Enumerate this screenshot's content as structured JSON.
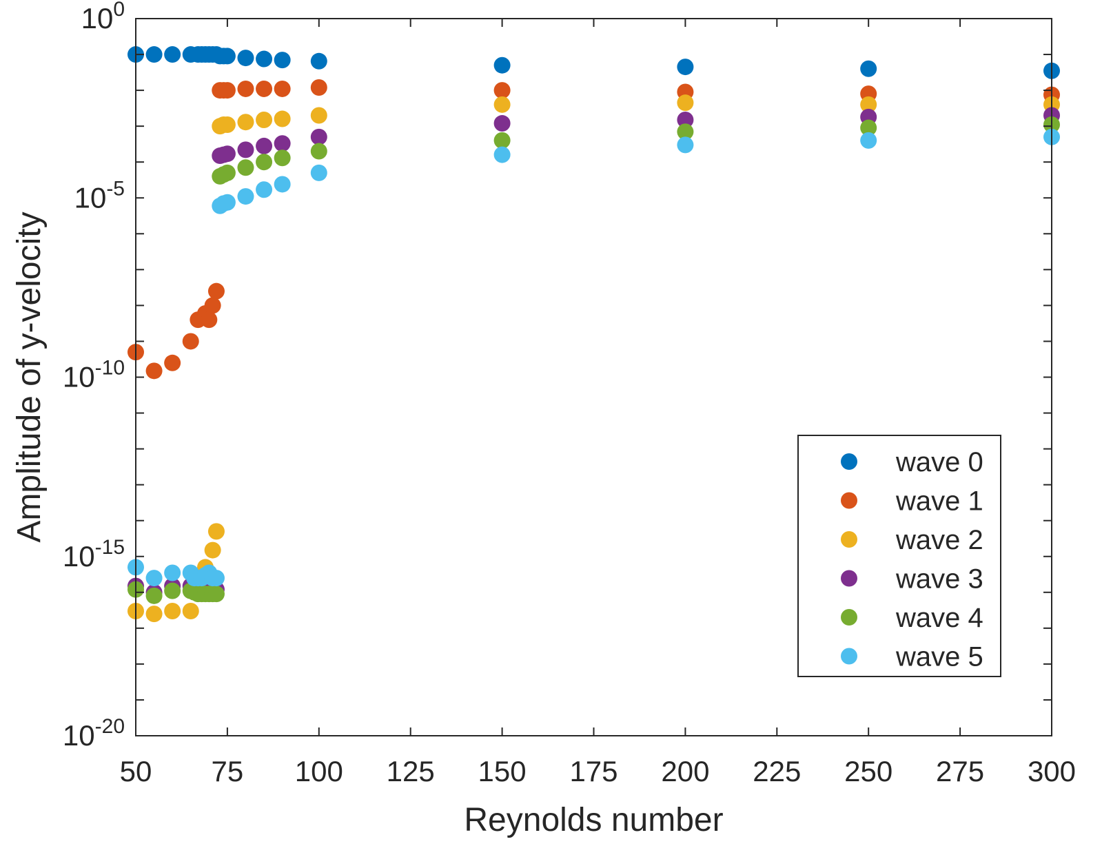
{
  "chart_data": {
    "type": "scatter",
    "xlabel": "Reynolds number",
    "ylabel": "Amplitude of y-velocity",
    "xlim": [
      50,
      300
    ],
    "ylim_exponent": [
      -20,
      0
    ],
    "yscale": "log",
    "x_ticks": [
      50,
      75,
      100,
      125,
      150,
      175,
      200,
      225,
      250,
      275,
      300
    ],
    "y_ticks": [
      {
        "base": "10",
        "exp": "0",
        "value": 1
      },
      {
        "base": "10",
        "exp": "-5",
        "value": 1e-05
      },
      {
        "base": "10",
        "exp": "-10",
        "value": 1e-10
      },
      {
        "base": "10",
        "exp": "-15",
        "value": 1e-15
      },
      {
        "base": "10",
        "exp": "-20",
        "value": 1e-20
      }
    ],
    "grid": false,
    "legend_position": "bottom-right",
    "series": [
      {
        "name": "wave 0",
        "color": "#0072BD",
        "points": [
          [
            50,
            0.1
          ],
          [
            55,
            0.1
          ],
          [
            60,
            0.1
          ],
          [
            65,
            0.1
          ],
          [
            67,
            0.1
          ],
          [
            68,
            0.1
          ],
          [
            69,
            0.1
          ],
          [
            70,
            0.1
          ],
          [
            71,
            0.1
          ],
          [
            72,
            0.1
          ],
          [
            73,
            0.09
          ],
          [
            74,
            0.09
          ],
          [
            75,
            0.09
          ],
          [
            80,
            0.08
          ],
          [
            85,
            0.075
          ],
          [
            90,
            0.07
          ],
          [
            100,
            0.065
          ],
          [
            150,
            0.05
          ],
          [
            200,
            0.045
          ],
          [
            250,
            0.04
          ],
          [
            300,
            0.035
          ]
        ]
      },
      {
        "name": "wave 1",
        "color": "#D95319",
        "points": [
          [
            50,
            5e-10
          ],
          [
            55,
            1.5e-10
          ],
          [
            60,
            2.5e-10
          ],
          [
            65,
            1e-09
          ],
          [
            67,
            4e-09
          ],
          [
            69,
            6e-09
          ],
          [
            70,
            4e-09
          ],
          [
            71,
            1e-08
          ],
          [
            72,
            2.5e-08
          ],
          [
            73,
            0.01
          ],
          [
            74,
            0.01
          ],
          [
            75,
            0.01
          ],
          [
            80,
            0.011
          ],
          [
            85,
            0.011
          ],
          [
            90,
            0.011
          ],
          [
            100,
            0.012
          ],
          [
            150,
            0.01
          ],
          [
            200,
            0.009
          ],
          [
            250,
            0.008
          ],
          [
            300,
            0.0075
          ]
        ]
      },
      {
        "name": "wave 2",
        "color": "#EDB120",
        "points": [
          [
            50,
            3e-17
          ],
          [
            55,
            2.5e-17
          ],
          [
            60,
            3e-17
          ],
          [
            65,
            3e-17
          ],
          [
            69,
            5e-16
          ],
          [
            71,
            1.5e-15
          ],
          [
            72,
            5e-15
          ],
          [
            73,
            0.001
          ],
          [
            74,
            0.0011
          ],
          [
            75,
            0.0011
          ],
          [
            80,
            0.0013
          ],
          [
            85,
            0.0015
          ],
          [
            90,
            0.0016
          ],
          [
            100,
            0.002
          ],
          [
            150,
            0.004
          ],
          [
            200,
            0.0045
          ],
          [
            250,
            0.004
          ],
          [
            300,
            0.004
          ]
        ]
      },
      {
        "name": "wave 3",
        "color": "#7E2F8E",
        "points": [
          [
            50,
            1.5e-16
          ],
          [
            55,
            1e-16
          ],
          [
            60,
            1.5e-16
          ],
          [
            65,
            1.5e-16
          ],
          [
            67,
            1.5e-16
          ],
          [
            69,
            1.5e-16
          ],
          [
            71,
            1.5e-16
          ],
          [
            72,
            1.2e-16
          ],
          [
            73,
            0.00015
          ],
          [
            74,
            0.00016
          ],
          [
            75,
            0.00017
          ],
          [
            80,
            0.00022
          ],
          [
            85,
            0.00028
          ],
          [
            90,
            0.00033
          ],
          [
            100,
            0.0005
          ],
          [
            150,
            0.0012
          ],
          [
            200,
            0.0015
          ],
          [
            250,
            0.0018
          ],
          [
            300,
            0.002
          ]
        ]
      },
      {
        "name": "wave 4",
        "color": "#77AC30",
        "points": [
          [
            50,
            1.2e-16
          ],
          [
            55,
            8e-17
          ],
          [
            60,
            1.1e-16
          ],
          [
            65,
            1.1e-16
          ],
          [
            66,
            1e-16
          ],
          [
            67,
            9e-17
          ],
          [
            68,
            9e-17
          ],
          [
            69,
            9e-17
          ],
          [
            70,
            9e-17
          ],
          [
            71,
            9e-17
          ],
          [
            72,
            9e-17
          ],
          [
            73,
            4e-05
          ],
          [
            74,
            4.5e-05
          ],
          [
            75,
            5e-05
          ],
          [
            80,
            7e-05
          ],
          [
            85,
            0.0001
          ],
          [
            90,
            0.00013
          ],
          [
            100,
            0.0002
          ],
          [
            150,
            0.0004
          ],
          [
            200,
            0.0007
          ],
          [
            250,
            0.0009
          ],
          [
            300,
            0.0011
          ]
        ]
      },
      {
        "name": "wave 5",
        "color": "#4DBEEE",
        "points": [
          [
            50,
            5e-16
          ],
          [
            55,
            2.5e-16
          ],
          [
            60,
            3.5e-16
          ],
          [
            65,
            3.5e-16
          ],
          [
            66,
            2.5e-16
          ],
          [
            67,
            2.5e-16
          ],
          [
            68,
            2.5e-16
          ],
          [
            69,
            3e-16
          ],
          [
            70,
            3.5e-16
          ],
          [
            71,
            2.5e-16
          ],
          [
            72,
            2.5e-16
          ],
          [
            73,
            6e-06
          ],
          [
            74,
            7e-06
          ],
          [
            75,
            7.5e-06
          ],
          [
            80,
            1.1e-05
          ],
          [
            85,
            1.7e-05
          ],
          [
            90,
            2.4e-05
          ],
          [
            100,
            5e-05
          ],
          [
            150,
            0.00016
          ],
          [
            200,
            0.0003
          ],
          [
            250,
            0.0004
          ],
          [
            300,
            0.0005
          ]
        ]
      }
    ]
  }
}
